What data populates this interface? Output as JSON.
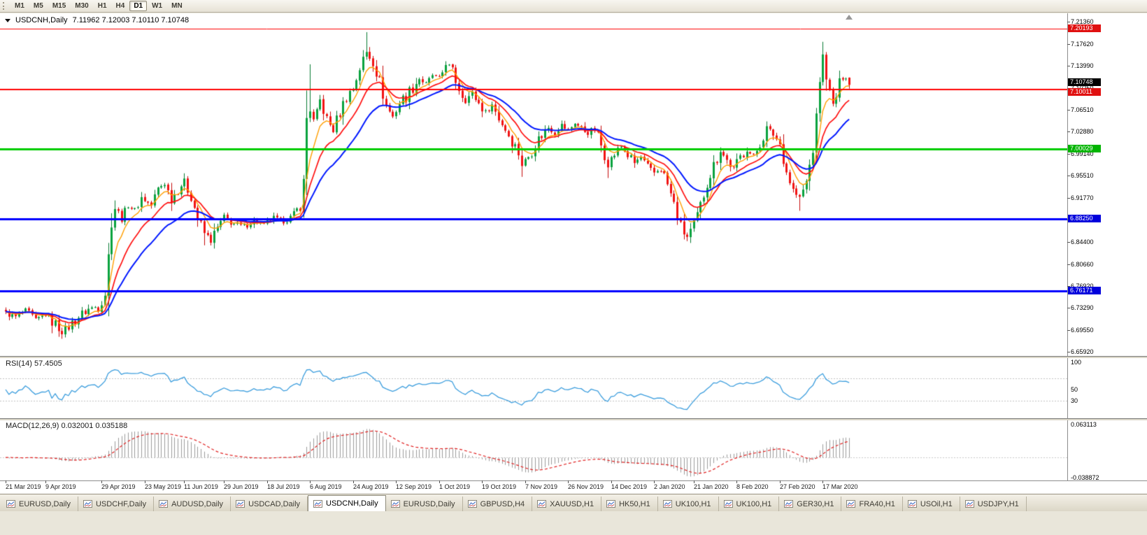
{
  "toolbar": {
    "timeframes": [
      {
        "label": "M1",
        "active": false
      },
      {
        "label": "M5",
        "active": false
      },
      {
        "label": "M15",
        "active": false
      },
      {
        "label": "M30",
        "active": false
      },
      {
        "label": "H1",
        "active": false
      },
      {
        "label": "H4",
        "active": false
      },
      {
        "label": "D1",
        "active": true
      },
      {
        "label": "W1",
        "active": false
      },
      {
        "label": "MN",
        "active": false
      }
    ]
  },
  "chart": {
    "symbol": "USDCNH,Daily",
    "ohlc": "7.11962 7.12003 7.10110 7.10748"
  },
  "price_axis": {
    "ticks": [
      "7.21360",
      "7.17620",
      "7.13990",
      "7.10250",
      "7.06510",
      "7.02880",
      "6.99140",
      "6.95510",
      "6.91770",
      "6.88140",
      "6.84400",
      "6.80660",
      "6.76920",
      "6.73290",
      "6.69550",
      "6.65920"
    ],
    "badges": [
      {
        "label": "7.20193",
        "price": 7.20193,
        "bg": "#e01010",
        "fg": "#ffffff",
        "name": "resistance-level-badge"
      },
      {
        "label": "7.10748",
        "price": 7.10748,
        "bg": "#000000",
        "fg": "#ffffff",
        "dy": -4,
        "name": "current-price-badge"
      },
      {
        "label": "7.10011",
        "price": 7.10011,
        "bg": "#e01010",
        "fg": "#ffffff",
        "dy": 4,
        "name": "resistance-level-badge"
      },
      {
        "label": "7.00029",
        "price": 7.00029,
        "bg": "#00b400",
        "fg": "#ffffff",
        "name": "support-level-badge"
      },
      {
        "label": "6.88250",
        "price": 6.8825,
        "bg": "#0000dc",
        "fg": "#ffffff",
        "name": "support-level-badge"
      },
      {
        "label": "6.76171",
        "price": 6.76171,
        "bg": "#0000dc",
        "fg": "#ffffff",
        "name": "support-level-badge"
      }
    ]
  },
  "rsi": {
    "label": "RSI(14) 57.4505",
    "value": 57.4505,
    "levels": [
      70,
      30
    ],
    "axis_labels": [
      {
        "text": "100",
        "v": 100
      },
      {
        "text": "50",
        "v": 50
      },
      {
        "text": "30",
        "v": 30
      }
    ]
  },
  "macd": {
    "label": "MACD(12,26,9) 0.032001 0.035188",
    "macd_value": 0.032001,
    "signal_value": 0.035188,
    "axis_top": "0.063113",
    "axis_bottom": "-0.038872"
  },
  "time_axis": {
    "labels": [
      {
        "text": "21 Mar 2019",
        "i": 0
      },
      {
        "text": "9 Apr 2019",
        "i": 12
      },
      {
        "text": "29 Apr 2019",
        "i": 29
      },
      {
        "text": "23 May 2019",
        "i": 42
      },
      {
        "text": "11 Jun 2019",
        "i": 54
      },
      {
        "text": "29 Jun 2019",
        "i": 66
      },
      {
        "text": "18 Jul 2019",
        "i": 79
      },
      {
        "text": "6 Aug 2019",
        "i": 92
      },
      {
        "text": "24 Aug 2019",
        "i": 105
      },
      {
        "text": "12 Sep 2019",
        "i": 118
      },
      {
        "text": "1 Oct 2019",
        "i": 131
      },
      {
        "text": "19 Oct 2019",
        "i": 144
      },
      {
        "text": "7 Nov 2019",
        "i": 157
      },
      {
        "text": "26 Nov 2019",
        "i": 170
      },
      {
        "text": "14 Dec 2019",
        "i": 183
      },
      {
        "text": "2 Jan 2020",
        "i": 196
      },
      {
        "text": "21 Jan 2020",
        "i": 208
      },
      {
        "text": "8 Feb 2020",
        "i": 221
      },
      {
        "text": "27 Feb 2020",
        "i": 234
      },
      {
        "text": "17 Mar 2020",
        "i": 247
      }
    ]
  },
  "tabs": [
    {
      "label": "EURUSD,Daily",
      "active": false
    },
    {
      "label": "USDCHF,Daily",
      "active": false
    },
    {
      "label": "AUDUSD,Daily",
      "active": false
    },
    {
      "label": "USDCAD,Daily",
      "active": false
    },
    {
      "label": "USDCNH,Daily",
      "active": true
    },
    {
      "label": "EURUSD,Daily",
      "active": false
    },
    {
      "label": "GBPUSD,H4",
      "active": false
    },
    {
      "label": "XAUUSD,H1",
      "active": false
    },
    {
      "label": "HK50,H1",
      "active": false
    },
    {
      "label": "UK100,H1",
      "active": false
    },
    {
      "label": "UK100,H1",
      "active": false
    },
    {
      "label": "GER30,H1",
      "active": false
    },
    {
      "label": "FRA40,H1",
      "active": false
    },
    {
      "label": "USOil,H1",
      "active": false
    },
    {
      "label": "USDJPY,H1",
      "active": false
    }
  ],
  "chart_data": {
    "type": "candlestick",
    "symbol": "USDCNH",
    "timeframe": "Daily",
    "title": "USDCNH,Daily",
    "ylim": [
      6.6592,
      7.2136
    ],
    "candles_count": 256,
    "current_bar": {
      "open": 7.11962,
      "high": 7.12003,
      "low": 7.1011,
      "close": 7.10748
    },
    "x_labels": [
      "21 Mar 2019",
      "9 Apr 2019",
      "29 Apr 2019",
      "23 May 2019",
      "11 Jun 2019",
      "29 Jun 2019",
      "18 Jul 2019",
      "6 Aug 2019",
      "24 Aug 2019",
      "12 Sep 2019",
      "1 Oct 2019",
      "19 Oct 2019",
      "7 Nov 2019",
      "26 Nov 2019",
      "14 Dec 2019",
      "2 Jan 2020",
      "21 Jan 2020",
      "8 Feb 2020",
      "27 Feb 2020",
      "17 Mar 2020"
    ],
    "candle_colors": {
      "up": "#0aa23e",
      "down": "#f21212"
    },
    "close_waypoints": [
      [
        0,
        6.724
      ],
      [
        3,
        6.718
      ],
      [
        6,
        6.728
      ],
      [
        9,
        6.712
      ],
      [
        12,
        6.722
      ],
      [
        15,
        6.705
      ],
      [
        17,
        6.692
      ],
      [
        19,
        6.702
      ],
      [
        22,
        6.718
      ],
      [
        25,
        6.731
      ],
      [
        28,
        6.736
      ],
      [
        30,
        6.758
      ],
      [
        31,
        6.82
      ],
      [
        32,
        6.878
      ],
      [
        33,
        6.902
      ],
      [
        35,
        6.882
      ],
      [
        37,
        6.908
      ],
      [
        39,
        6.896
      ],
      [
        41,
        6.918
      ],
      [
        44,
        6.905
      ],
      [
        46,
        6.932
      ],
      [
        48,
        6.944
      ],
      [
        50,
        6.914
      ],
      [
        52,
        6.934
      ],
      [
        54,
        6.944
      ],
      [
        56,
        6.922
      ],
      [
        58,
        6.882
      ],
      [
        60,
        6.858
      ],
      [
        62,
        6.846
      ],
      [
        64,
        6.866
      ],
      [
        66,
        6.884
      ],
      [
        69,
        6.874
      ],
      [
        72,
        6.87
      ],
      [
        75,
        6.88
      ],
      [
        78,
        6.872
      ],
      [
        81,
        6.884
      ],
      [
        84,
        6.878
      ],
      [
        87,
        6.886
      ],
      [
        89,
        6.906
      ],
      [
        90,
        6.944
      ],
      [
        91,
        7.052
      ],
      [
        92,
        7.068
      ],
      [
        93,
        7.044
      ],
      [
        95,
        7.082
      ],
      [
        97,
        7.048
      ],
      [
        99,
        7.032
      ],
      [
        101,
        7.062
      ],
      [
        103,
        7.088
      ],
      [
        105,
        7.102
      ],
      [
        107,
        7.136
      ],
      [
        109,
        7.162
      ],
      [
        111,
        7.148
      ],
      [
        113,
        7.112
      ],
      [
        115,
        7.072
      ],
      [
        117,
        7.054
      ],
      [
        119,
        7.078
      ],
      [
        121,
        7.088
      ],
      [
        123,
        7.104
      ],
      [
        125,
        7.118
      ],
      [
        127,
        7.108
      ],
      [
        129,
        7.124
      ],
      [
        131,
        7.112
      ],
      [
        133,
        7.146
      ],
      [
        135,
        7.128
      ],
      [
        137,
        7.102
      ],
      [
        139,
        7.082
      ],
      [
        141,
        7.094
      ],
      [
        143,
        7.076
      ],
      [
        145,
        7.062
      ],
      [
        147,
        7.074
      ],
      [
        149,
        7.052
      ],
      [
        151,
        7.034
      ],
      [
        153,
        7.014
      ],
      [
        155,
        6.994
      ],
      [
        156,
        6.974
      ],
      [
        158,
        6.988
      ],
      [
        160,
        7.008
      ],
      [
        162,
        7.024
      ],
      [
        164,
        7.036
      ],
      [
        166,
        7.026
      ],
      [
        168,
        7.04
      ],
      [
        170,
        7.03
      ],
      [
        172,
        7.044
      ],
      [
        174,
        7.034
      ],
      [
        176,
        7.026
      ],
      [
        178,
        7.034
      ],
      [
        180,
        7.006
      ],
      [
        182,
        6.976
      ],
      [
        184,
        6.992
      ],
      [
        186,
        7.004
      ],
      [
        188,
        6.99
      ],
      [
        190,
        6.976
      ],
      [
        192,
        6.986
      ],
      [
        194,
        6.966
      ],
      [
        196,
        6.96
      ],
      [
        198,
        6.968
      ],
      [
        200,
        6.94
      ],
      [
        202,
        6.906
      ],
      [
        204,
        6.868
      ],
      [
        206,
        6.852
      ],
      [
        208,
        6.87
      ],
      [
        210,
        6.904
      ],
      [
        212,
        6.944
      ],
      [
        214,
        6.972
      ],
      [
        216,
        6.998
      ],
      [
        218,
        6.98
      ],
      [
        220,
        6.966
      ],
      [
        222,
        6.986
      ],
      [
        224,
        6.998
      ],
      [
        226,
        6.986
      ],
      [
        228,
        7.01
      ],
      [
        230,
        7.034
      ],
      [
        232,
        7.026
      ],
      [
        234,
        7.008
      ],
      [
        236,
        6.962
      ],
      [
        238,
        6.93
      ],
      [
        240,
        6.916
      ],
      [
        242,
        6.944
      ],
      [
        244,
        7.0
      ],
      [
        245,
        7.05
      ],
      [
        246,
        7.118
      ],
      [
        247,
        7.152
      ],
      [
        248,
        7.126
      ],
      [
        249,
        7.092
      ],
      [
        250,
        7.072
      ],
      [
        251,
        7.088
      ],
      [
        252,
        7.108
      ],
      [
        253,
        7.124
      ],
      [
        254,
        7.118
      ],
      [
        255,
        7.10748
      ]
    ],
    "wick_overrides": [
      {
        "i": 17,
        "low": 6.681
      },
      {
        "i": 60,
        "low": 6.838
      },
      {
        "i": 92,
        "high": 7.142
      },
      {
        "i": 109,
        "high": 7.196
      },
      {
        "i": 156,
        "low": 6.953
      },
      {
        "i": 182,
        "low": 6.951
      },
      {
        "i": 206,
        "low": 6.845
      },
      {
        "i": 240,
        "low": 6.896
      },
      {
        "i": 247,
        "high": 7.168
      }
    ],
    "overlay_lines": [
      {
        "name": "ma-fast",
        "type": "EMA",
        "period": 6,
        "color": "#ff9e00"
      },
      {
        "name": "ma-mid",
        "type": "EMA",
        "period": 13,
        "color": "#ff1010"
      },
      {
        "name": "ma-slow",
        "type": "EMA",
        "period": 25,
        "color": "#0018ff"
      }
    ],
    "horizontal_lines": [
      {
        "price": 7.20193,
        "color": "#ff0000",
        "width": 1
      },
      {
        "price": 7.10011,
        "color": "#ff0000",
        "width": 2
      },
      {
        "price": 7.00029,
        "color": "#00cc00",
        "width": 3
      },
      {
        "price": 6.8825,
        "color": "#0000ff",
        "width": 3
      },
      {
        "price": 6.76171,
        "color": "#0000ff",
        "width": 3
      }
    ],
    "indicators": [
      {
        "name": "RSI",
        "period": 14,
        "value": 57.4505,
        "range": [
          0,
          100
        ],
        "levels": [
          70,
          30
        ],
        "color": "#3b9ddd"
      },
      {
        "name": "MACD",
        "fast": 12,
        "slow": 26,
        "signal": 9,
        "macd_value": 0.032001,
        "signal_value": 0.035188,
        "axis_max": 0.063113,
        "axis_min": -0.038872,
        "histogram_color": "#9b9b9b",
        "signal_color": "#e02020"
      }
    ]
  }
}
